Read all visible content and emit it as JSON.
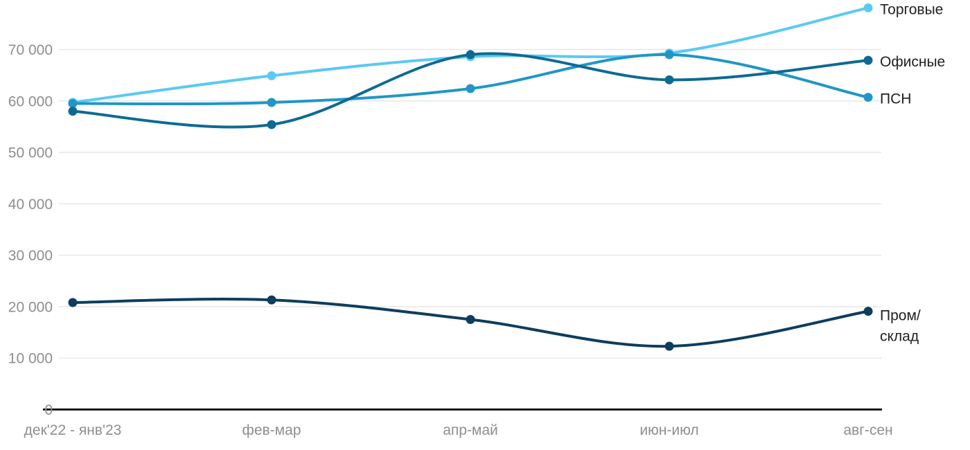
{
  "chart_data": {
    "type": "line",
    "title": "",
    "xlabel": "",
    "ylabel": "",
    "categories": [
      "дек'22 - янв'23",
      "фев-мар",
      "апр-май",
      "июн-июл",
      "авг-сен"
    ],
    "series": [
      {
        "key": "retail",
        "name": "Торговые",
        "color": "#5BC9F4",
        "values": [
          59700,
          64900,
          68600,
          69300,
          78100
        ]
      },
      {
        "key": "office",
        "name": "Офисные",
        "color": "#0E6A93",
        "values": [
          58000,
          55400,
          69000,
          64100,
          67900
        ]
      },
      {
        "key": "psn",
        "name": "ПСН",
        "color": "#2196C6",
        "values": [
          59500,
          59700,
          62400,
          69000,
          60700
        ]
      },
      {
        "key": "industrial",
        "name": "Пром/склад",
        "color": "#0E3D5E",
        "values": [
          20800,
          21300,
          17500,
          12300,
          19100
        ],
        "label_lines": [
          "Пром/",
          "склад"
        ]
      }
    ],
    "yticks": [
      0,
      10000,
      20000,
      30000,
      40000,
      50000,
      60000,
      70000
    ],
    "ytick_labels": [
      "0",
      "10 000",
      "20 000",
      "30 000",
      "40 000",
      "50 000",
      "60 000",
      "70 000"
    ],
    "ylim": [
      0,
      78500
    ],
    "grid": true,
    "legend_position": "line-end-right"
  },
  "colors": {
    "background": "#ffffff",
    "gridline": "#e7e7e7",
    "axis_line": "#1a1a1a",
    "tick_text": "#8e8e8e",
    "legend_text": "#212121"
  }
}
